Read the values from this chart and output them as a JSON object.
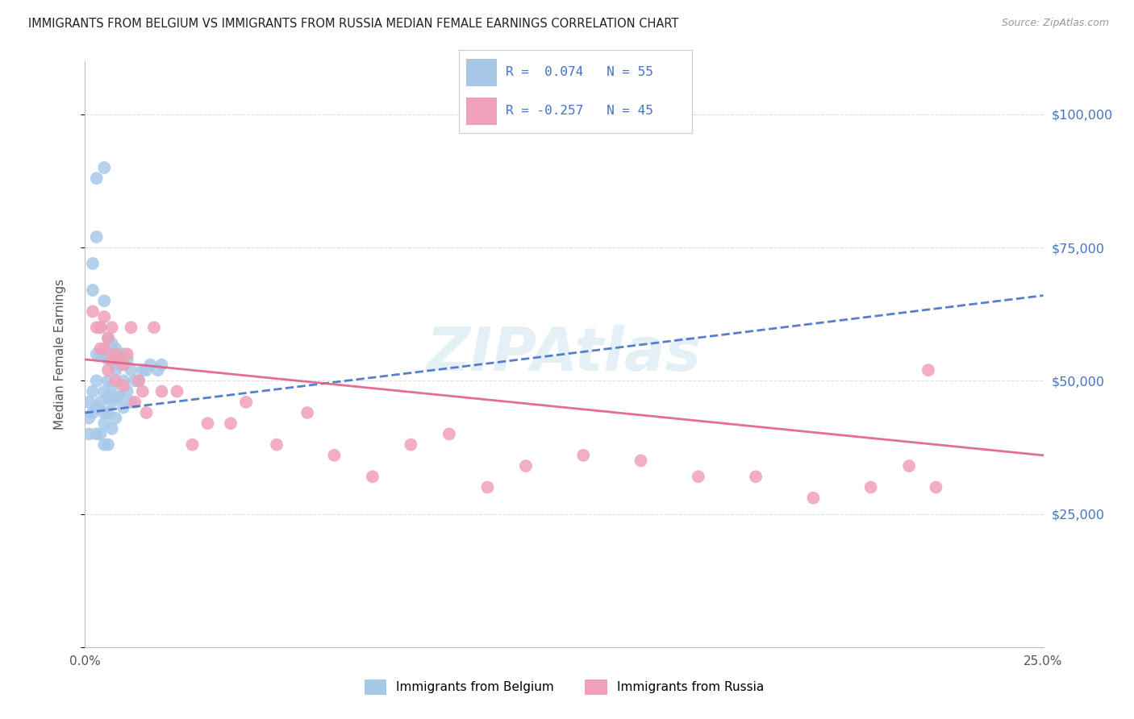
{
  "title": "IMMIGRANTS FROM BELGIUM VS IMMIGRANTS FROM RUSSIA MEDIAN FEMALE EARNINGS CORRELATION CHART",
  "source": "Source: ZipAtlas.com",
  "ylabel": "Median Female Earnings",
  "xmin": 0.0,
  "xmax": 0.25,
  "ymin": 0,
  "ymax": 110000,
  "yticks": [
    0,
    25000,
    50000,
    75000,
    100000
  ],
  "ytick_labels": [
    "",
    "$25,000",
    "$50,000",
    "$75,000",
    "$100,000"
  ],
  "xticks": [
    0.0,
    0.05,
    0.1,
    0.15,
    0.2,
    0.25
  ],
  "r_belgium": 0.074,
  "n_belgium": 55,
  "r_russia": -0.257,
  "n_russia": 45,
  "color_belgium": "#a8c8e8",
  "color_russia": "#f0a0b8",
  "color_belgium_line": "#4472c4",
  "color_russia_line": "#e06080",
  "color_right_axis": "#4472c4",
  "background_color": "#ffffff",
  "belgium_x": [
    0.001,
    0.001,
    0.001,
    0.002,
    0.002,
    0.002,
    0.002,
    0.003,
    0.003,
    0.003,
    0.003,
    0.003,
    0.004,
    0.004,
    0.004,
    0.004,
    0.005,
    0.005,
    0.005,
    0.005,
    0.005,
    0.005,
    0.006,
    0.006,
    0.006,
    0.006,
    0.006,
    0.006,
    0.007,
    0.007,
    0.007,
    0.007,
    0.007,
    0.008,
    0.008,
    0.008,
    0.008,
    0.009,
    0.009,
    0.01,
    0.01,
    0.01,
    0.011,
    0.011,
    0.012,
    0.012,
    0.013,
    0.014,
    0.015,
    0.016,
    0.017,
    0.019,
    0.02,
    0.003,
    0.005
  ],
  "belgium_y": [
    46000,
    43000,
    40000,
    72000,
    67000,
    48000,
    44000,
    77000,
    55000,
    50000,
    45000,
    40000,
    60000,
    55000,
    46000,
    40000,
    65000,
    55000,
    48000,
    44000,
    42000,
    38000,
    58000,
    54000,
    50000,
    47000,
    44000,
    38000,
    57000,
    54000,
    49000,
    46000,
    41000,
    56000,
    52000,
    47000,
    43000,
    53000,
    47000,
    55000,
    50000,
    45000,
    54000,
    48000,
    52000,
    46000,
    50000,
    50000,
    52000,
    52000,
    53000,
    52000,
    53000,
    88000,
    90000
  ],
  "russia_x": [
    0.002,
    0.003,
    0.004,
    0.004,
    0.005,
    0.005,
    0.006,
    0.006,
    0.007,
    0.007,
    0.008,
    0.008,
    0.009,
    0.01,
    0.01,
    0.011,
    0.012,
    0.013,
    0.014,
    0.015,
    0.016,
    0.018,
    0.02,
    0.024,
    0.028,
    0.032,
    0.038,
    0.042,
    0.05,
    0.058,
    0.065,
    0.075,
    0.085,
    0.095,
    0.105,
    0.115,
    0.13,
    0.145,
    0.16,
    0.175,
    0.19,
    0.205,
    0.215,
    0.22,
    0.222
  ],
  "russia_y": [
    63000,
    60000,
    60000,
    56000,
    62000,
    56000,
    58000,
    52000,
    60000,
    54000,
    55000,
    50000,
    54000,
    53000,
    49000,
    55000,
    60000,
    46000,
    50000,
    48000,
    44000,
    60000,
    48000,
    48000,
    38000,
    42000,
    42000,
    46000,
    38000,
    44000,
    36000,
    32000,
    38000,
    40000,
    30000,
    34000,
    36000,
    35000,
    32000,
    32000,
    28000,
    30000,
    34000,
    52000,
    30000
  ]
}
